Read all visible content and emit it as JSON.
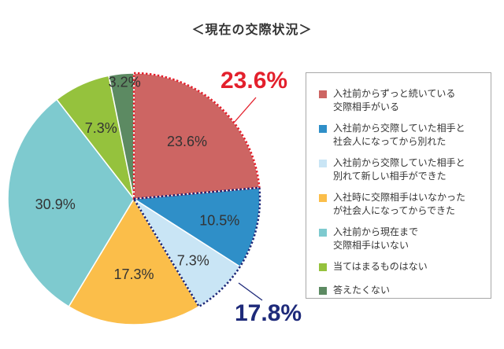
{
  "title": "＜現在の交際状況＞",
  "chart_data": {
    "type": "pie",
    "slices": [
      {
        "label": "入社前からずっと続いている交際相手がいる",
        "value": 23.6,
        "display": "23.6%",
        "color": "#CD6563"
      },
      {
        "label": "入社前から交際していた相手と社会人になってから別れた",
        "value": 10.5,
        "display": "10.5%",
        "color": "#2F8FC8"
      },
      {
        "label": "入社前から交際していた相手と別れて新しい相手ができた",
        "value": 7.3,
        "display": "7.3%",
        "color": "#C9E5F5"
      },
      {
        "label": "入社時に交際相手はいなかったが社会人になってからできた",
        "value": 17.3,
        "display": "17.3%",
        "color": "#FBBE4A"
      },
      {
        "label": "入社前から現在まで交際相手はいない",
        "value": 30.9,
        "display": "30.9%",
        "color": "#7ECACF"
      },
      {
        "label": "当てはまるものはない",
        "value": 7.3,
        "display": "7.3%",
        "color": "#95C23D"
      },
      {
        "label": "答えたくない",
        "value": 3.2,
        "display": "3.2%",
        "color": "#5C8A62"
      }
    ],
    "legend": [
      [
        "入社前からずっと続いている",
        "交際相手がいる"
      ],
      [
        "入社前から交際していた相手と",
        "社会人になってから別れた"
      ],
      [
        "入社前から交際していた相手と",
        "別れて新しい相手ができた"
      ],
      [
        "入社時に交際相手はいなかった",
        "が社会人になってからできた"
      ],
      [
        "入社前から現在まで",
        "交際相手はいない"
      ],
      [
        "当てはまるものはない"
      ],
      [
        "答えたくない"
      ]
    ],
    "legend_position": "right",
    "callouts": [
      {
        "text": "23.6%",
        "color": "#E3202C"
      },
      {
        "text": "17.8%",
        "color": "#1E2A7A"
      }
    ]
  }
}
